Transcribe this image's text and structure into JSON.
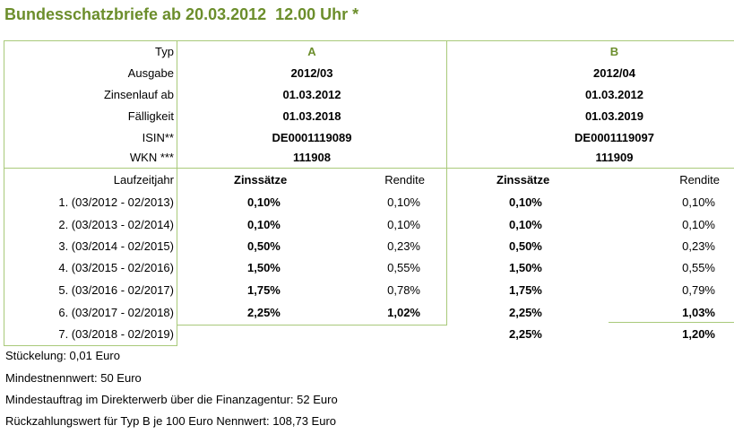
{
  "title": "Bundesschatzbriefe ab 20.03.2012  12.00 Uhr *",
  "header": {
    "labels": [
      "Typ",
      "Ausgabe",
      "Zinsenlauf ab",
      "Fälligkeit",
      "ISIN**",
      "WKN ***"
    ],
    "a": [
      "A",
      "2012/03",
      "01.03.2012",
      "01.03.2018",
      "DE0001119089",
      "111908"
    ],
    "b": [
      "B",
      "2012/04",
      "01.03.2012",
      "01.03.2019",
      "DE0001119097",
      "111909"
    ]
  },
  "columns": {
    "laufzeitjahr": "Laufzeitjahr",
    "zinssaetze": "Zinssätze",
    "rendite": "Rendite"
  },
  "rows": [
    {
      "year": "1. (03/2012 - 02/2013)",
      "a_zins": "0,10%",
      "a_rend": "0,10%",
      "b_zins": "0,10%",
      "b_rend": "0,10%"
    },
    {
      "year": "2. (03/2013 - 02/2014)",
      "a_zins": "0,10%",
      "a_rend": "0,10%",
      "b_zins": "0,10%",
      "b_rend": "0,10%"
    },
    {
      "year": "3. (03/2014 - 02/2015)",
      "a_zins": "0,50%",
      "a_rend": "0,23%",
      "b_zins": "0,50%",
      "b_rend": "0,23%"
    },
    {
      "year": "4. (03/2015 - 02/2016)",
      "a_zins": "1,50%",
      "a_rend": "0,55%",
      "b_zins": "1,50%",
      "b_rend": "0,55%"
    },
    {
      "year": "5. (03/2016 - 02/2017)",
      "a_zins": "1,75%",
      "a_rend": "0,78%",
      "b_zins": "1,75%",
      "b_rend": "0,79%"
    },
    {
      "year": "6. (03/2017 - 02/2018)",
      "a_zins": "2,25%",
      "a_rend": "1,02%",
      "b_zins": "2,25%",
      "b_rend": "1,03%"
    },
    {
      "year": "7. (03/2018 - 02/2019)",
      "a_zins": "",
      "a_rend": "",
      "b_zins": "2,25%",
      "b_rend": "1,20%"
    }
  ],
  "footer": [
    "Stückelung: 0,01 Euro",
    "Mindestnennwert: 50 Euro",
    "Mindestauftrag im Direkterwerb über die Finanzagentur: 52 Euro",
    "Rückzahlungswert für Typ B je 100 Euro Nennwert: 108,73 Euro"
  ]
}
